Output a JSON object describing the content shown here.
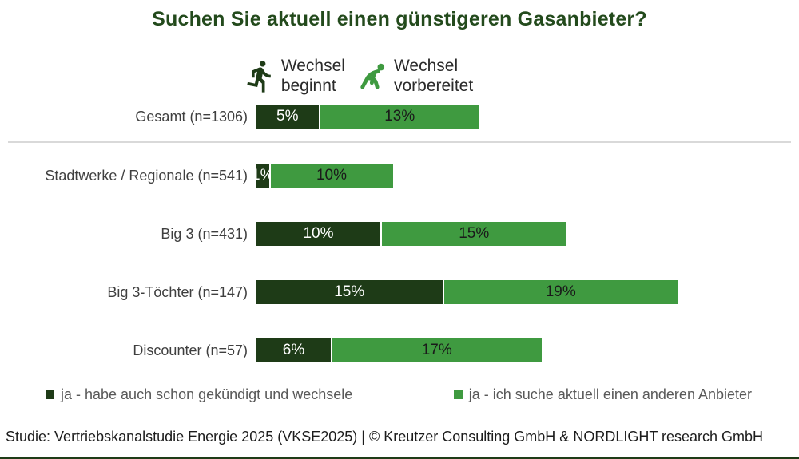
{
  "title": "Suchen Sie aktuell einen günstigeren Gasanbieter?",
  "icon_legend": {
    "items": [
      {
        "icon": "runner-running-icon",
        "line1": "Wechsel",
        "line2": "beginnt"
      },
      {
        "icon": "runner-crouch-start-icon",
        "line1": "Wechsel",
        "line2": "vorbereitet"
      }
    ]
  },
  "chart_data": {
    "type": "bar",
    "orientation": "horizontal",
    "stacked": true,
    "title": "Suchen Sie aktuell einen günstigeren Gasanbieter?",
    "categories": [
      "Gesamt (n=1306)",
      "Stadtwerke / Regionale (n=541)",
      "Big 3 (n=431)",
      "Big 3-Töchter (n=147)",
      "Discounter (n=57)"
    ],
    "series": [
      {
        "name": "ja - habe auch schon gekündigt und wechsele",
        "color": "#1e3b17",
        "label_color": "#ffffff",
        "values": [
          5,
          1,
          10,
          15,
          6
        ]
      },
      {
        "name": "ja - ich suche aktuell einen anderen Anbieter",
        "color": "#3f9a40",
        "label_color": "#1a1a1a",
        "values": [
          13,
          10,
          15,
          19,
          17
        ]
      }
    ],
    "value_suffix": "%",
    "xlim": [
      0,
      40
    ],
    "grid": false,
    "legend_position": "bottom"
  },
  "footer": "Studie: Vertriebskanalstudie Energie 2025 (VKSE2025) | © Kreutzer Consulting GmbH & NORDLIGHT research GmbH",
  "colors": {
    "title_green": "#234a1c",
    "dark_green": "#1e3b17",
    "medium_green": "#3f9a40",
    "divider_gray": "#d9d9d9",
    "bottom_rule_green": "#1e3b17"
  }
}
